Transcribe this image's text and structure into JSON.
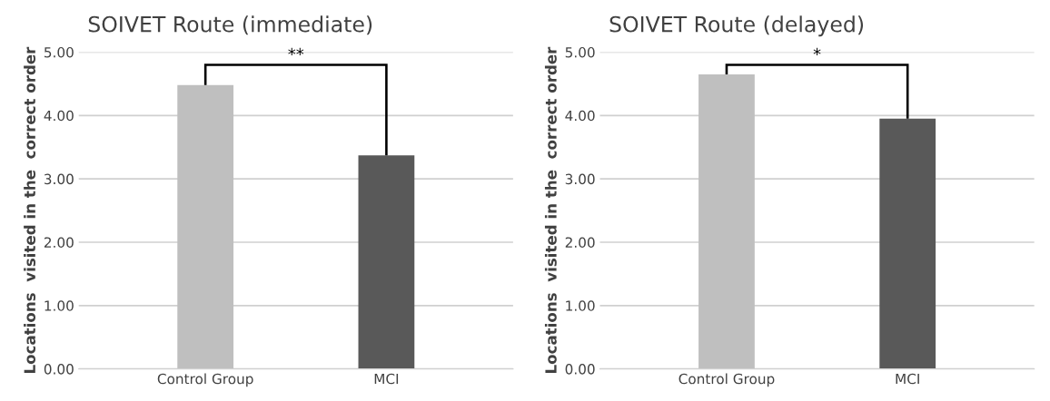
{
  "chart_data": [
    {
      "type": "bar",
      "title": "SOIVET Route (immediate)",
      "ylabel": "Locations  visited in the  correct order",
      "categories": [
        "Control Group",
        "MCI"
      ],
      "values": [
        4.48,
        3.37
      ],
      "colors": [
        "#bfbfbf",
        "#595959"
      ],
      "ylim": [
        0,
        5
      ],
      "yticks": [
        {
          "value": 0,
          "label": "0.00"
        },
        {
          "value": 1,
          "label": "1.00"
        },
        {
          "value": 2,
          "label": "2.00"
        },
        {
          "value": 3,
          "label": "3.00"
        },
        {
          "value": 4,
          "label": "4.00"
        },
        {
          "value": 5,
          "label": "5.00"
        }
      ],
      "grid": "y",
      "annotations": [
        "**"
      ]
    },
    {
      "type": "bar",
      "title": "SOIVET Route (delayed)",
      "ylabel": "Locations  visited in the  correct order",
      "categories": [
        "Control Group",
        "MCI"
      ],
      "values": [
        4.65,
        3.95
      ],
      "colors": [
        "#bfbfbf",
        "#595959"
      ],
      "ylim": [
        0,
        5
      ],
      "yticks": [
        {
          "value": 0,
          "label": "0.00"
        },
        {
          "value": 1,
          "label": "1.00"
        },
        {
          "value": 2,
          "label": "2.00"
        },
        {
          "value": 3,
          "label": "3.00"
        },
        {
          "value": 4,
          "label": "4.00"
        },
        {
          "value": 5,
          "label": "5.00"
        }
      ],
      "grid": "y",
      "annotations": [
        "*"
      ]
    }
  ]
}
